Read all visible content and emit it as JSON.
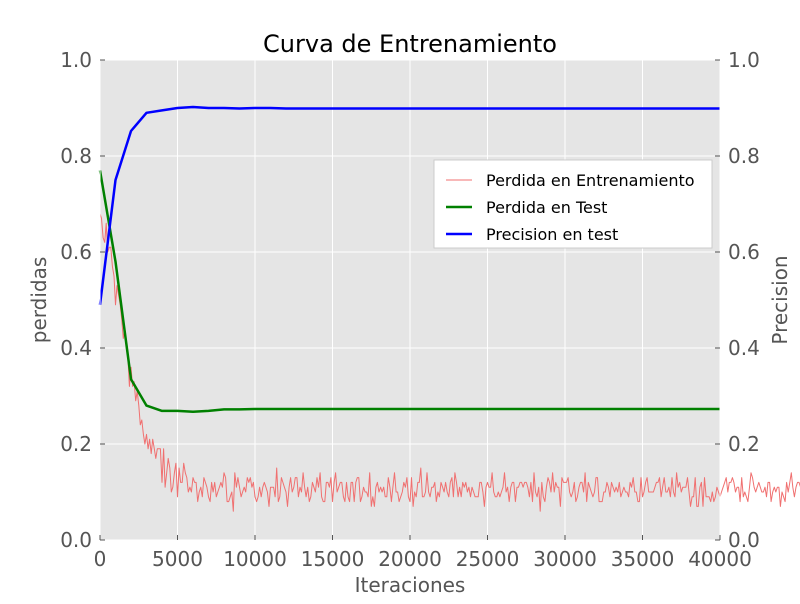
{
  "chart_data": {
    "type": "line",
    "title": "Curva de Entrenamiento",
    "xlabel": "Iteraciones",
    "ylabel_left": "perdidas",
    "ylabel_right": "Precision",
    "xlim": [
      0,
      40000
    ],
    "ylim_left": [
      0.0,
      1.0
    ],
    "ylim_right": [
      0.0,
      1.0
    ],
    "x_ticks": [
      "0",
      "5000",
      "10000",
      "15000",
      "20000",
      "25000",
      "30000",
      "35000",
      "40000"
    ],
    "y_ticks_left": [
      "0.0",
      "0.2",
      "0.4",
      "0.6",
      "0.8",
      "1.0"
    ],
    "y_ticks_right": [
      "0.0",
      "0.2",
      "0.4",
      "0.6",
      "0.8",
      "1.0"
    ],
    "grid": true,
    "legend_position": "center-right",
    "background": "#e5e5e5",
    "series": [
      {
        "name": "Perdida en Entrenamiento",
        "axis": "left",
        "color": "#f07070",
        "style": "thin-noisy",
        "x_start": 0,
        "x_step": 100,
        "values": [
          0.68,
          0.67,
          0.63,
          0.62,
          0.66,
          0.6,
          0.61,
          0.61,
          0.57,
          0.55,
          0.49,
          0.53,
          0.51,
          0.49,
          0.46,
          0.42,
          0.44,
          0.4,
          0.38,
          0.32,
          0.36,
          0.32,
          0.33,
          0.29,
          0.31,
          0.28,
          0.24,
          0.25,
          0.22,
          0.2,
          0.22,
          0.19,
          0.21,
          0.18,
          0.21,
          0.19,
          0.17,
          0.19,
          0.19,
          0.19,
          0.12,
          0.19,
          0.11,
          0.14,
          0.17,
          0.15,
          0.1,
          0.11,
          0.14,
          0.16,
          0.09,
          0.15,
          0.12,
          0.12,
          0.16,
          0.14,
          0.13,
          0.1,
          0.11,
          0.1,
          0.13,
          0.12,
          0.12,
          0.08,
          0.1,
          0.11,
          0.09,
          0.13,
          0.12,
          0.11,
          0.09,
          0.08,
          0.12,
          0.1,
          0.12,
          0.09,
          0.1,
          0.11,
          0.12,
          0.11,
          0.14,
          0.13,
          0.08,
          0.08,
          0.09,
          0.1,
          0.06,
          0.14,
          0.11,
          0.13,
          0.11,
          0.09,
          0.1,
          0.11,
          0.1,
          0.13,
          0.12,
          0.13,
          0.11,
          0.12,
          0.09,
          0.08,
          0.09,
          0.11,
          0.09,
          0.11,
          0.12,
          0.11,
          0.1,
          0.07,
          0.11,
          0.11,
          0.11,
          0.09,
          0.15,
          0.08,
          0.09,
          0.13,
          0.12,
          0.11,
          0.1,
          0.07,
          0.11,
          0.13,
          0.1,
          0.11,
          0.13,
          0.13,
          0.09,
          0.11,
          0.1,
          0.14,
          0.11,
          0.09,
          0.11,
          0.08,
          0.09,
          0.12,
          0.11,
          0.1,
          0.13,
          0.11,
          0.14,
          0.09,
          0.08,
          0.08,
          0.12,
          0.12,
          0.11,
          0.13,
          0.08,
          0.12,
          0.14,
          0.1,
          0.11,
          0.12,
          0.12,
          0.09,
          0.08,
          0.12,
          0.09,
          0.08,
          0.12,
          0.12,
          0.08,
          0.12,
          0.13,
          0.13,
          0.08,
          0.09,
          0.11,
          0.1,
          0.1,
          0.09,
          0.14,
          0.07,
          0.09,
          0.07,
          0.11,
          0.12,
          0.1,
          0.11,
          0.1,
          0.11,
          0.09,
          0.09,
          0.13,
          0.11,
          0.08,
          0.11,
          0.14,
          0.1,
          0.1,
          0.08,
          0.09,
          0.1,
          0.12,
          0.11,
          0.13,
          0.09,
          0.08,
          0.13,
          0.07,
          0.1,
          0.09,
          0.12,
          0.12,
          0.15,
          0.09,
          0.09,
          0.1,
          0.14,
          0.1,
          0.09,
          0.11,
          0.11,
          0.12,
          0.08,
          0.1,
          0.09,
          0.12,
          0.11,
          0.1,
          0.12,
          0.1,
          0.09,
          0.12,
          0.13,
          0.09,
          0.14,
          0.12,
          0.09,
          0.11,
          0.09,
          0.12,
          0.11,
          0.12,
          0.1,
          0.11,
          0.09,
          0.11,
          0.1,
          0.09,
          0.09,
          0.09,
          0.12,
          0.12,
          0.1,
          0.07,
          0.11,
          0.12,
          0.11,
          0.11,
          0.14,
          0.1,
          0.09,
          0.09,
          0.1,
          0.09,
          0.1,
          0.11,
          0.14,
          0.1,
          0.11,
          0.08,
          0.11,
          0.12,
          0.12,
          0.08,
          0.11,
          0.11,
          0.12,
          0.12,
          0.11,
          0.12,
          0.12,
          0.11,
          0.09,
          0.12,
          0.08,
          0.14,
          0.1,
          0.09,
          0.11,
          0.06,
          0.12,
          0.09,
          0.08,
          0.11,
          0.13,
          0.12,
          0.1,
          0.14,
          0.1,
          0.12,
          0.11,
          0.11,
          0.07,
          0.13,
          0.12,
          0.12,
          0.12,
          0.13,
          0.1,
          0.09,
          0.1,
          0.12,
          0.08,
          0.09,
          0.11,
          0.12,
          0.12,
          0.1,
          0.14,
          0.08,
          0.12,
          0.11,
          0.1,
          0.09,
          0.1,
          0.13,
          0.13,
          0.08,
          0.08,
          0.08,
          0.1,
          0.1,
          0.12,
          0.11,
          0.09,
          0.12,
          0.11,
          0.1,
          0.11,
          0.1,
          0.12,
          0.09,
          0.1,
          0.11,
          0.1,
          0.1,
          0.09,
          0.12,
          0.11,
          0.13,
          0.1,
          0.1,
          0.08,
          0.08,
          0.13,
          0.09,
          0.1,
          0.12,
          0.13,
          0.1,
          0.1,
          0.1,
          0.1,
          0.11,
          0.12,
          0.12,
          0.13,
          0.09,
          0.11,
          0.13,
          0.1,
          0.1,
          0.11,
          0.09,
          0.13,
          0.1,
          0.09,
          0.14,
          0.11,
          0.12,
          0.1,
          0.11,
          0.11,
          0.11,
          0.13,
          0.1,
          0.07,
          0.09,
          0.09,
          0.13,
          0.07,
          0.07,
          0.11,
          0.12,
          0.07,
          0.13,
          0.09,
          0.09,
          0.09,
          0.08,
          0.1,
          0.08,
          0.09,
          0.11,
          0.1,
          0.09,
          0.1,
          0.11,
          0.12,
          0.13,
          0.1,
          0.12,
          0.12,
          0.13,
          0.12,
          0.1,
          0.11,
          0.11,
          0.08,
          0.13,
          0.09,
          0.1,
          0.09,
          0.08,
          0.11,
          0.14,
          0.13,
          0.11,
          0.1,
          0.11,
          0.12,
          0.11,
          0.1,
          0.1,
          0.11,
          0.09,
          0.12,
          0.12,
          0.08,
          0.1,
          0.11,
          0.1,
          0.11,
          0.11,
          0.07,
          0.1,
          0.09,
          0.08,
          0.12,
          0.1,
          0.12,
          0.14,
          0.11,
          0.09,
          0.11,
          0.12,
          0.12,
          0.11,
          0.09,
          0.13,
          0.1,
          0.1,
          0.1,
          0.11,
          0.1,
          0.1,
          0.11,
          0.11,
          0.1,
          0.1,
          0.09,
          0.11,
          0.11,
          0.12,
          0.12,
          0.09,
          0.11,
          0.14,
          0.08,
          0.11,
          0.13,
          0.09,
          0.07,
          0.13,
          0.12,
          0.1,
          0.1,
          0.11,
          0.11,
          0.07,
          0.1,
          0.1,
          0.11,
          0.09,
          0.11,
          0.12,
          0.09,
          0.12,
          0.09,
          0.12,
          0.12,
          0.08,
          0.1,
          0.12,
          0.11,
          0.12,
          0.08,
          0.09,
          0.09,
          0.09,
          0.1,
          0.11,
          0.12,
          0.09,
          0.11,
          0.11,
          0.13,
          0.07,
          0.09,
          0.1,
          0.14,
          0.12,
          0.12,
          0.09,
          0.11,
          0.11,
          0.1,
          0.12,
          0.11,
          0.1,
          0.14,
          0.12,
          0.11,
          0.14,
          0.09,
          0.11,
          0.13,
          0.1,
          0.14,
          0.09,
          0.14,
          0.12,
          0.13,
          0.12,
          0.11,
          0.14,
          0.13,
          0.1,
          0.08,
          0.13,
          0.1,
          0.14,
          0.12,
          0.12,
          0.11,
          0.1,
          0.11,
          0.11,
          0.09,
          0.11,
          0.11,
          0.11,
          0.09,
          0.1,
          0.1,
          0.08,
          0.1,
          0.1,
          0.07,
          0.11,
          0.12,
          0.1,
          0.11,
          0.1,
          0.11,
          0.11,
          0.14,
          0.11,
          0.1,
          0.11,
          0.09,
          0.1,
          0.12,
          0.12,
          0.08,
          0.1,
          0.11,
          0.11,
          0.1,
          0.11,
          0.1,
          0.13,
          0.11,
          0.11,
          0.11,
          0.09,
          0.11,
          0.1,
          0.07,
          0.12,
          0.11,
          0.1,
          0.12,
          0.13,
          0.1,
          0.08,
          0.08,
          0.11,
          0.12,
          0.1,
          0.11,
          0.09,
          0.11,
          0.14,
          0.1,
          0.12,
          0.11,
          0.09,
          0.13,
          0.1,
          0.12,
          0.1,
          0.09,
          0.12,
          0.09,
          0.13,
          0.09,
          0.11,
          0.08,
          0.11,
          0.09,
          0.11,
          0.15,
          0.1,
          0.12,
          0.12,
          0.12,
          0.1,
          0.13,
          0.08,
          0.1,
          0.11,
          0.09,
          0.11,
          0.12,
          0.1,
          0.12,
          0.09,
          0.12,
          0.1,
          0.1,
          0.1,
          0.1,
          0.12,
          0.13,
          0.13,
          0.09,
          0.11,
          0.12,
          0.09,
          0.1,
          0.1,
          0.12,
          0.12,
          0.07,
          0.13,
          0.12,
          0.13,
          0.12,
          0.11,
          0.08,
          0.11,
          0.09,
          0.1,
          0.09,
          0.11,
          0.1,
          0.07,
          0.11,
          0.15,
          0.13,
          0.11,
          0.14,
          0.11,
          0.12,
          0.11,
          0.09,
          0.1,
          0.1,
          0.11,
          0.09,
          0.11,
          0.1,
          0.12,
          0.11,
          0.11,
          0.1,
          0.09,
          0.08,
          0.12,
          0.11,
          0.11,
          0.1,
          0.12,
          0.1,
          0.11,
          0.11,
          0.13,
          0.1,
          0.11,
          0.1,
          0.12,
          0.11,
          0.1,
          0.1,
          0.12,
          0.11,
          0.08,
          0.11,
          0.11,
          0.1,
          0.1,
          0.1,
          0.12,
          0.11,
          0.12,
          0.12,
          0.13,
          0.11,
          0.12,
          0.1,
          0.11,
          0.12,
          0.12,
          0.1,
          0.1,
          0.1,
          0.11,
          0.1,
          0.1,
          0.1,
          0.1,
          0.1,
          0.14,
          0.1,
          0.13,
          0.1,
          0.09,
          0.11,
          0.11,
          0.09,
          0.1,
          0.1,
          0.08,
          0.11,
          0.08,
          0.08,
          0.11,
          0.14,
          0.08,
          0.08,
          0.1,
          0.11,
          0.09,
          0.1,
          0.1,
          0.1,
          0.1,
          0.12,
          0.1,
          0.11,
          0.11,
          0.11,
          0.1,
          0.11,
          0.11,
          0.11,
          0.11,
          0.11,
          0.11,
          0.1,
          0.11,
          0.11,
          0.12,
          0.13,
          0.12,
          0.08,
          0.11,
          0.12,
          0.11,
          0.11,
          0.12,
          0.14,
          0.09,
          0.1,
          0.14,
          0.11,
          0.09,
          0.07,
          0.13,
          0.13,
          0.11,
          0.11,
          0.12,
          0.1,
          0.12,
          0.12,
          0.1,
          0.12,
          0.11,
          0.1,
          0.09,
          0.09,
          0.11,
          0.13,
          0.11,
          0.12,
          0.09,
          0.09,
          0.12,
          0.12,
          0.09,
          0.1,
          0.12,
          0.1,
          0.09,
          0.11,
          0.12,
          0.11,
          0.11,
          0.12,
          0.08,
          0.13,
          0.11,
          0.12,
          0.1,
          0.14,
          0.1,
          0.13,
          0.09,
          0.13,
          0.08,
          0.1,
          0.11,
          0.1,
          0.09,
          0.11,
          0.13,
          0.13,
          0.12,
          0.09,
          0.11,
          0.09,
          0.1,
          0.1,
          0.1,
          0.13,
          0.09,
          0.11,
          0.11,
          0.09,
          0.09,
          0.1,
          0.11,
          0.1,
          0.1,
          0.07,
          0.13,
          0.11,
          0.12,
          0.12,
          0.13,
          0.09,
          0.12,
          0.1,
          0.1,
          0.12,
          0.11,
          0.09,
          0.09,
          0.1,
          0.1,
          0.11,
          0.14,
          0.11,
          0.11,
          0.12,
          0.12,
          0.1,
          0.12,
          0.1,
          0.11,
          0.11,
          0.11,
          0.09,
          0.12,
          0.09,
          0.1,
          0.1,
          0.1,
          0.11,
          0.12,
          0.08,
          0.13,
          0.12,
          0.11,
          0.12,
          0.08,
          0.11,
          0.13,
          0.08,
          0.11,
          0.08,
          0.1,
          0.12,
          0.09,
          0.09,
          0.1,
          0.11,
          0.09,
          0.13,
          0.13,
          0.09,
          0.1,
          0.11,
          0.08,
          0.1,
          0.12,
          0.12,
          0.12,
          0.11,
          0.1,
          0.08,
          0.11,
          0.09,
          0.08,
          0.09,
          0.11,
          0.1,
          0.11,
          0.12,
          0.11,
          0.11,
          0.09,
          0.13,
          0.11,
          0.08,
          0.09,
          0.11,
          0.12,
          0.1,
          0.1,
          0.1,
          0.12,
          0.09,
          0.11,
          0.1,
          0.12,
          0.1,
          0.12,
          0.11,
          0.1,
          0.12,
          0.09,
          0.09,
          0.08,
          0.13,
          0.11,
          0.12,
          0.1,
          0.08,
          0.12,
          0.09,
          0.1,
          0.12,
          0.08,
          0.1,
          0.11,
          0.09,
          0.1,
          0.1,
          0.1,
          0.09,
          0.12,
          0.11,
          0.12,
          0.09,
          0.11,
          0.1,
          0.09,
          0.08,
          0.12,
          0.12,
          0.13,
          0.1,
          0.12,
          0.09,
          0.12,
          0.09,
          0.12,
          0.1,
          0.13,
          0.1,
          0.08,
          0.09,
          0.09,
          0.11,
          0.08,
          0.12,
          0.09,
          0.11,
          0.08,
          0.14,
          0.13,
          0.09,
          0.1,
          0.12,
          0.1,
          0.12,
          0.09,
          0.09,
          0.08,
          0.12,
          0.1,
          0.11,
          0.1,
          0.12,
          0.09,
          0.14,
          0.11,
          0.07,
          0.12,
          0.13,
          0.09,
          0.1,
          0.07
        ]
      },
      {
        "name": "Perdida en Test",
        "axis": "left",
        "color": "#008000",
        "x": [
          0,
          1000,
          2000,
          3000,
          4000,
          5000,
          6000,
          7000,
          8000,
          9000,
          10000,
          11000,
          12000,
          15000,
          20000,
          25000,
          30000,
          35000,
          40000
        ],
        "values": [
          0.77,
          0.58,
          0.335,
          0.28,
          0.269,
          0.269,
          0.267,
          0.269,
          0.272,
          0.272,
          0.273,
          0.273,
          0.273,
          0.273,
          0.273,
          0.273,
          0.273,
          0.273,
          0.273
        ]
      },
      {
        "name": "Precision en test",
        "axis": "right",
        "color": "#0000ff",
        "x": [
          0,
          1000,
          2000,
          3000,
          4000,
          5000,
          6000,
          7000,
          8000,
          9000,
          10000,
          11000,
          12000,
          15000,
          20000,
          25000,
          30000,
          35000,
          40000
        ],
        "values": [
          0.49,
          0.75,
          0.852,
          0.89,
          0.895,
          0.9,
          0.902,
          0.9,
          0.9,
          0.899,
          0.9,
          0.9,
          0.899,
          0.899,
          0.899,
          0.899,
          0.899,
          0.899,
          0.899
        ]
      }
    ]
  }
}
